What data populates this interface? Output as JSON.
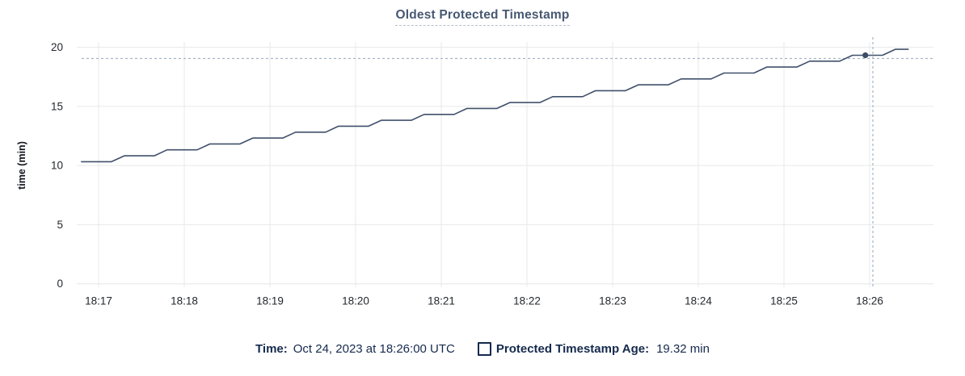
{
  "title": "Oldest Protected Timestamp",
  "yaxis": {
    "label": "time (min)"
  },
  "legend": {
    "time_label": "Time:",
    "time_value": "Oct 24, 2023 at 18:26:00 UTC",
    "series_label": "Protected Timestamp Age:",
    "series_value": "19.32 min"
  },
  "colors": {
    "line": "#40506b",
    "dot": "#3c4c66",
    "grid": "#e8e9eb",
    "axis_line": "#e3e5e8",
    "crosshair": "#a5b4c4",
    "tick_text": "#23282e",
    "title_text": "#475872",
    "legend_text": "#152a4d"
  },
  "chart_data": {
    "type": "line",
    "title": "Oldest Protected Timestamp",
    "xlabel": "",
    "ylabel": "time (min)",
    "ylim": [
      0,
      20
    ],
    "yticks": [
      0,
      5,
      10,
      15,
      20
    ],
    "xticks": [
      "18:17",
      "18:18",
      "18:19",
      "18:20",
      "18:21",
      "18:22",
      "18:23",
      "18:24",
      "18:25",
      "18:26"
    ],
    "x_unit": "minutes after 18:17",
    "grid": true,
    "legend_position": "bottom",
    "series": [
      {
        "name": "Protected Timestamp Age",
        "unit": "min",
        "points": [
          [
            -0.2,
            10.32
          ],
          [
            0.15,
            10.32
          ],
          [
            0.3,
            10.82
          ],
          [
            0.65,
            10.82
          ],
          [
            0.8,
            11.32
          ],
          [
            1.15,
            11.32
          ],
          [
            1.3,
            11.82
          ],
          [
            1.65,
            11.82
          ],
          [
            1.8,
            12.32
          ],
          [
            2.15,
            12.32
          ],
          [
            2.3,
            12.82
          ],
          [
            2.65,
            12.82
          ],
          [
            2.8,
            13.32
          ],
          [
            3.15,
            13.32
          ],
          [
            3.3,
            13.82
          ],
          [
            3.65,
            13.82
          ],
          [
            3.8,
            14.32
          ],
          [
            4.15,
            14.32
          ],
          [
            4.3,
            14.82
          ],
          [
            4.65,
            14.82
          ],
          [
            4.8,
            15.32
          ],
          [
            5.15,
            15.32
          ],
          [
            5.3,
            15.82
          ],
          [
            5.65,
            15.82
          ],
          [
            5.8,
            16.32
          ],
          [
            6.15,
            16.32
          ],
          [
            6.3,
            16.82
          ],
          [
            6.65,
            16.82
          ],
          [
            6.8,
            17.32
          ],
          [
            7.15,
            17.32
          ],
          [
            7.3,
            17.82
          ],
          [
            7.65,
            17.82
          ],
          [
            7.8,
            18.32
          ],
          [
            8.15,
            18.32
          ],
          [
            8.3,
            18.82
          ],
          [
            8.65,
            18.82
          ],
          [
            8.8,
            19.32
          ],
          [
            9.15,
            19.32
          ],
          [
            9.3,
            19.82
          ],
          [
            9.45,
            19.82
          ]
        ]
      }
    ],
    "hover_point": {
      "x": 8.95,
      "value": 19.32,
      "crosshair_x": 9.0,
      "time": "Oct 24, 2023 at 18:26:00 UTC"
    }
  }
}
